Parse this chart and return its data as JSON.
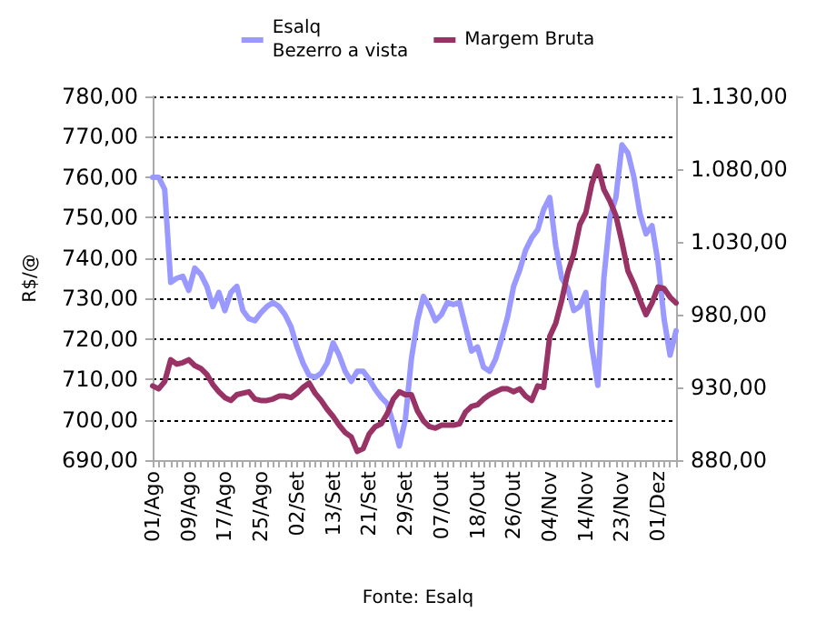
{
  "chart_data": {
    "type": "line",
    "ylabel": "R$/@",
    "categories": [
      "01/Ago",
      null,
      null,
      null,
      null,
      null,
      "09/Ago",
      null,
      null,
      null,
      null,
      null,
      "17/Ago",
      null,
      null,
      null,
      null,
      null,
      "25/Ago",
      null,
      null,
      null,
      null,
      null,
      "02/Set",
      null,
      null,
      null,
      null,
      null,
      "13/Set",
      null,
      null,
      null,
      null,
      null,
      "21/Set",
      null,
      null,
      null,
      null,
      null,
      "29/Set",
      null,
      null,
      null,
      null,
      null,
      "07/Out",
      null,
      null,
      null,
      null,
      null,
      "18/Out",
      null,
      null,
      null,
      null,
      null,
      "26/Out",
      null,
      null,
      null,
      null,
      null,
      "04/Nov",
      null,
      null,
      null,
      null,
      null,
      "14/Nov",
      null,
      null,
      null,
      null,
      null,
      "23/Nov",
      null,
      null,
      null,
      null,
      null,
      "01/Dez",
      null,
      null,
      null
    ],
    "series": [
      {
        "name": "Esalq\nBezerro a vista",
        "color": "#9999ff",
        "values": [
          760,
          760,
          757,
          734,
          735,
          735.5,
          732,
          737.5,
          736,
          733,
          728,
          731.5,
          727,
          731.5,
          733,
          727,
          725,
          724.5,
          726.5,
          728,
          729,
          728,
          726,
          723,
          718,
          714,
          711,
          710.5,
          711.5,
          714,
          719,
          716,
          712,
          709.5,
          712,
          712,
          710,
          707.5,
          705.5,
          704,
          699,
          693.5,
          700,
          715,
          724.5,
          730.5,
          728,
          724.5,
          726,
          729,
          728.5,
          729,
          723,
          717,
          718,
          713,
          712,
          715,
          720,
          725.5,
          733,
          737,
          742,
          745,
          747,
          752,
          755,
          743,
          735,
          732.5,
          727,
          728,
          731.5,
          718,
          708.5,
          735,
          750,
          755,
          768,
          766,
          760,
          751,
          746,
          748,
          739,
          725,
          716,
          722
        ]
      },
      {
        "name": "Margem Bruta",
        "color": "#993366",
        "axis": "y2",
        "values": [
          931,
          929,
          934,
          949,
          946,
          947,
          949,
          945,
          943,
          939,
          932,
          927,
          923,
          921,
          925,
          926,
          927,
          922,
          921,
          921,
          922,
          924,
          924,
          923,
          926,
          930,
          933,
          926,
          921,
          915,
          910,
          904,
          899,
          896,
          886,
          888,
          898,
          903,
          905,
          912,
          922,
          927,
          925,
          925,
          914,
          907,
          903,
          902,
          904,
          904,
          904,
          905,
          913,
          917,
          918,
          922,
          925,
          927,
          929,
          929,
          927,
          929,
          924,
          921,
          931,
          930,
          965,
          974,
          990,
          1009,
          1022,
          1042,
          1050,
          1070,
          1082,
          1066,
          1058,
          1048,
          1030,
          1010,
          1001,
          990,
          980,
          988,
          999,
          998,
          992,
          988
        ]
      }
    ],
    "ylim": [
      690,
      780
    ],
    "yticks": [
      {
        "value": 690,
        "label": "690,00"
      },
      {
        "value": 700,
        "label": "700,00"
      },
      {
        "value": 710,
        "label": "710,00"
      },
      {
        "value": 720,
        "label": "720,00"
      },
      {
        "value": 730,
        "label": "730,00"
      },
      {
        "value": 740,
        "label": "740,00"
      },
      {
        "value": 750,
        "label": "750,00"
      },
      {
        "value": 760,
        "label": "760,00"
      },
      {
        "value": 770,
        "label": "770,00"
      },
      {
        "value": 780,
        "label": "780,00"
      }
    ],
    "y2lim": [
      880,
      1130
    ],
    "y2ticks": [
      {
        "value": 880,
        "label": "880,00"
      },
      {
        "value": 930,
        "label": "930,00"
      },
      {
        "value": 980,
        "label": "980,00"
      },
      {
        "value": 1030,
        "label": "1.030,00"
      },
      {
        "value": 1080,
        "label": "1.080,00"
      },
      {
        "value": 1130,
        "label": "1.130,00"
      }
    ],
    "grid": "y",
    "legend": "top",
    "annotations": [
      "Fonte: Esalq"
    ]
  }
}
